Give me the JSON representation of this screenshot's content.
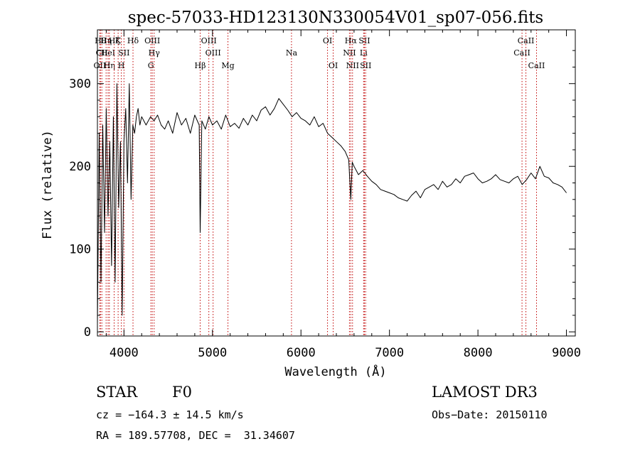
{
  "chart_data": {
    "type": "line",
    "title": "spec-57033-HD123130N330054V01_sp07-056.fits",
    "xlabel": "Wavelength (Å)",
    "ylabel": "Flux (relative)",
    "xlim": [
      3700,
      9100
    ],
    "ylim": [
      -5,
      365
    ],
    "xticks": [
      4000,
      5000,
      6000,
      7000,
      8000,
      9000
    ],
    "yticks": [
      0,
      100,
      200,
      300
    ],
    "series": [
      {
        "name": "flux",
        "x": [
          3700,
          3720,
          3740,
          3760,
          3780,
          3800,
          3820,
          3840,
          3860,
          3880,
          3900,
          3920,
          3940,
          3960,
          3980,
          4000,
          4020,
          4040,
          4060,
          4080,
          4100,
          4120,
          4140,
          4160,
          4180,
          4200,
          4250,
          4300,
          4340,
          4380,
          4420,
          4460,
          4500,
          4550,
          4600,
          4650,
          4700,
          4750,
          4800,
          4850,
          4861,
          4880,
          4920,
          4960,
          5000,
          5050,
          5100,
          5150,
          5200,
          5250,
          5300,
          5350,
          5400,
          5450,
          5500,
          5550,
          5600,
          5650,
          5700,
          5750,
          5800,
          5850,
          5900,
          5950,
          6000,
          6050,
          6100,
          6150,
          6200,
          6250,
          6300,
          6350,
          6400,
          6450,
          6500,
          6540,
          6563,
          6580,
          6600,
          6650,
          6700,
          6750,
          6800,
          6850,
          6900,
          6950,
          7000,
          7050,
          7100,
          7150,
          7200,
          7250,
          7300,
          7350,
          7400,
          7450,
          7500,
          7550,
          7600,
          7650,
          7700,
          7750,
          7800,
          7850,
          7900,
          7950,
          8000,
          8050,
          8100,
          8150,
          8200,
          8250,
          8300,
          8350,
          8400,
          8450,
          8500,
          8550,
          8600,
          8650,
          8700,
          8750,
          8800,
          8850,
          8900,
          8950,
          9000
        ],
        "values": [
          10,
          240,
          60,
          250,
          120,
          270,
          140,
          230,
          80,
          260,
          60,
          300,
          150,
          230,
          20,
          230,
          270,
          180,
          300,
          160,
          250,
          240,
          260,
          270,
          250,
          260,
          250,
          260,
          255,
          262,
          250,
          245,
          255,
          240,
          265,
          250,
          258,
          240,
          262,
          250,
          120,
          255,
          245,
          260,
          250,
          255,
          245,
          262,
          248,
          252,
          246,
          258,
          250,
          262,
          255,
          268,
          272,
          262,
          270,
          282,
          275,
          268,
          260,
          265,
          258,
          255,
          250,
          260,
          248,
          252,
          240,
          235,
          230,
          225,
          218,
          208,
          160,
          205,
          200,
          190,
          195,
          188,
          182,
          178,
          172,
          170,
          168,
          166,
          162,
          160,
          158,
          165,
          170,
          162,
          172,
          175,
          178,
          172,
          182,
          175,
          178,
          185,
          180,
          188,
          190,
          192,
          185,
          180,
          182,
          185,
          190,
          184,
          182,
          180,
          185,
          188,
          178,
          184,
          192,
          185,
          200,
          188,
          186,
          180,
          178,
          175,
          168
        ]
      }
    ],
    "lines": [
      {
        "wave": 3727,
        "label": "OII",
        "row": 3
      },
      {
        "wave": 3734,
        "label": "Hθ",
        "row": 1
      },
      {
        "wave": 3750,
        "label": "CII",
        "row": 2
      },
      {
        "wave": 3798,
        "label": "Hη",
        "row": 1
      },
      {
        "wave": 3820,
        "label": "HeI",
        "row": 2
      },
      {
        "wave": 3835,
        "label": "Hη",
        "row": 3
      },
      {
        "wave": 3889,
        "label": "Hζ",
        "row": 1
      },
      {
        "wave": 3934,
        "label": "K",
        "row": 1
      },
      {
        "wave": 3970,
        "label": "H",
        "row": 3
      },
      {
        "wave": 4000,
        "label": "SII",
        "row": 2
      },
      {
        "wave": 4102,
        "label": "Hδ",
        "row": 1
      },
      {
        "wave": 4304,
        "label": "G",
        "row": 3
      },
      {
        "wave": 4320,
        "label": "OIII",
        "row": 1
      },
      {
        "wave": 4341,
        "label": "Hγ",
        "row": 2
      },
      {
        "wave": 4861,
        "label": "Hβ",
        "row": 3
      },
      {
        "wave": 4959,
        "label": "OIII",
        "row": 1
      },
      {
        "wave": 5007,
        "label": "OIII",
        "row": 2
      },
      {
        "wave": 5175,
        "label": "Mg",
        "row": 3
      },
      {
        "wave": 5893,
        "label": "Na",
        "row": 2
      },
      {
        "wave": 6300,
        "label": "OI",
        "row": 1
      },
      {
        "wave": 6364,
        "label": "OI",
        "row": 3
      },
      {
        "wave": 6548,
        "label": "NII",
        "row": 2
      },
      {
        "wave": 6563,
        "label": "Hα",
        "row": 1
      },
      {
        "wave": 6583,
        "label": "NII",
        "row": 3
      },
      {
        "wave": 6708,
        "label": "Li",
        "row": 2
      },
      {
        "wave": 6717,
        "label": "SII",
        "row": 1
      },
      {
        "wave": 6731,
        "label": "SII",
        "row": 3
      },
      {
        "wave": 8498,
        "label": "CaII",
        "row": 2
      },
      {
        "wave": 8542,
        "label": "CaII",
        "row": 1
      },
      {
        "wave": 8662,
        "label": "CaII",
        "row": 3
      }
    ]
  },
  "info": {
    "class_label": "STAR",
    "subclass": "F0",
    "survey": "LAMOST DR3",
    "cz": "cz = −164.3 ± 14.5 km/s",
    "obs_date": "Obs−Date: 20150110",
    "coords": "RA = 189.57708, DEC =  31.34607"
  },
  "colors": {
    "line": "#c00000",
    "spectrum": "#000000"
  }
}
